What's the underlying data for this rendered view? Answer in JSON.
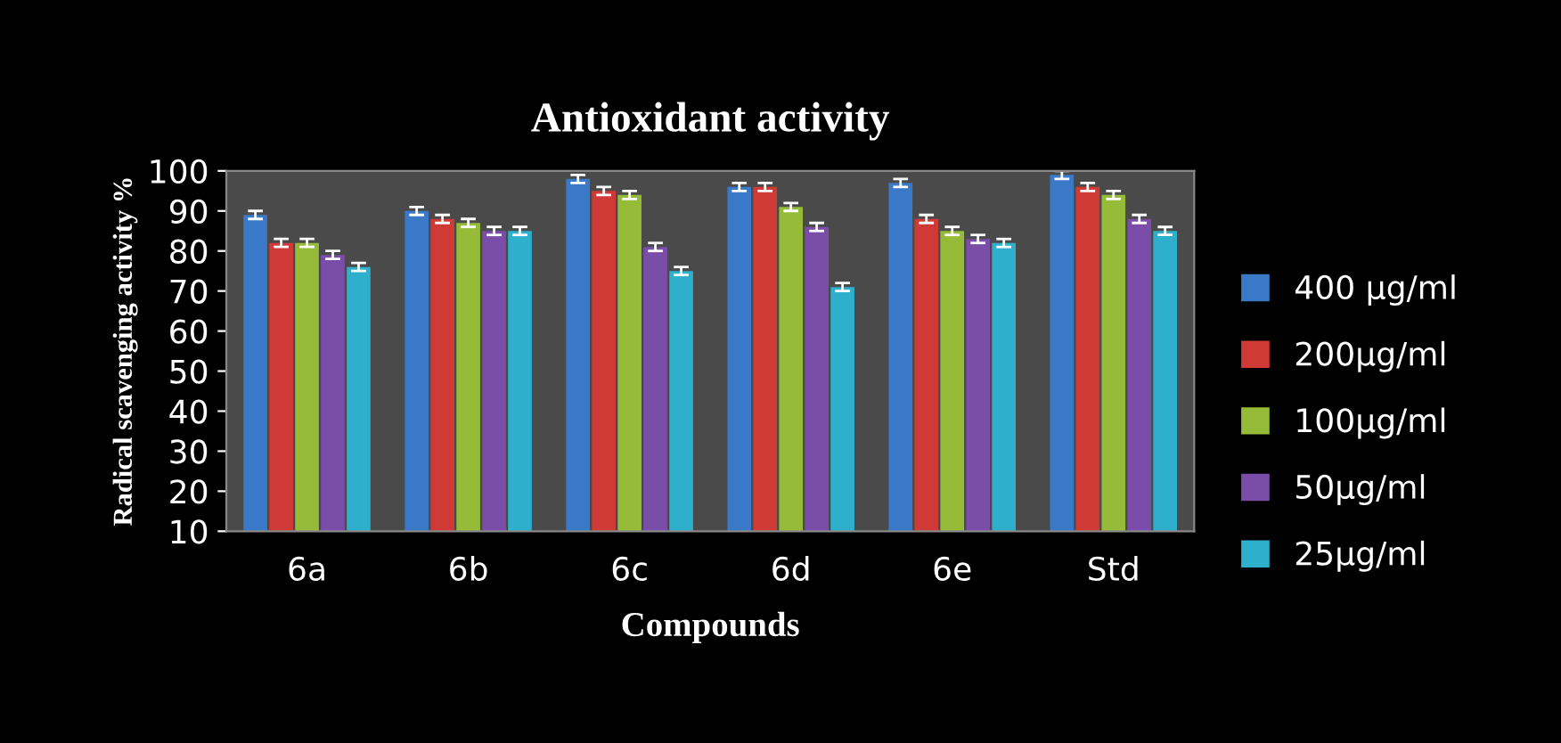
{
  "chart_data": {
    "type": "bar",
    "title": "Antioxidant activity",
    "xlabel": "Compounds",
    "ylabel": "Radical scavenging activity %",
    "categories": [
      "6a",
      "6b",
      "6c",
      "6d",
      "6e",
      "Std"
    ],
    "series": [
      {
        "name": "400 µg/ml",
        "color": "#3a78c8",
        "values": [
          89,
          90,
          98,
          96,
          97,
          99
        ],
        "errors": [
          1,
          1,
          1,
          1,
          1,
          1
        ]
      },
      {
        "name": "200µg/ml",
        "color": "#d03a36",
        "values": [
          82,
          88,
          95,
          96,
          88,
          96
        ],
        "errors": [
          1,
          1,
          1,
          1,
          1,
          1
        ]
      },
      {
        "name": "100µg/ml",
        "color": "#96bb38",
        "values": [
          82,
          87,
          94,
          91,
          85,
          94
        ],
        "errors": [
          1,
          1,
          1,
          1,
          1,
          1
        ]
      },
      {
        "name": "50µg/ml",
        "color": "#7a4ea8",
        "values": [
          79,
          85,
          81,
          86,
          83,
          88
        ],
        "errors": [
          1,
          1,
          1,
          1,
          1,
          1
        ]
      },
      {
        "name": "25µg/ml",
        "color": "#2eb0cc",
        "values": [
          76,
          85,
          75,
          71,
          82,
          85
        ],
        "errors": [
          1,
          1,
          1,
          1,
          1,
          1
        ]
      }
    ],
    "ylim": [
      10,
      100
    ],
    "yticks": [
      10,
      20,
      30,
      40,
      50,
      60,
      70,
      80,
      90,
      100
    ],
    "grid": false,
    "legend": "right"
  }
}
